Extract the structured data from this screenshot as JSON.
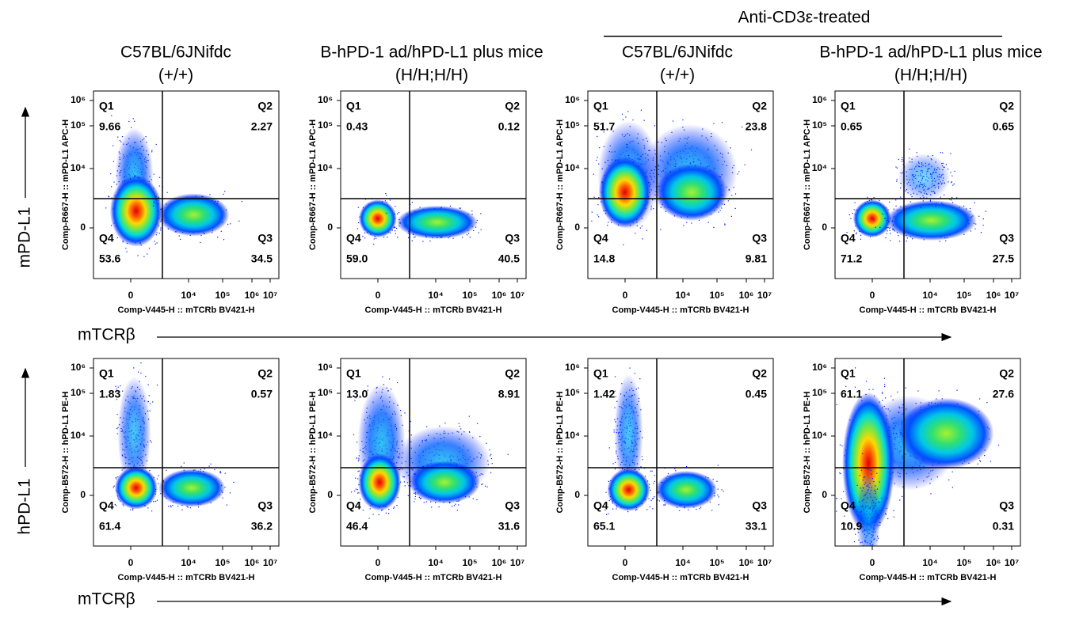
{
  "header": {
    "group_label": "Anti-CD3ε-treated"
  },
  "columns": [
    {
      "line1": "C57BL/6JNifdc",
      "line2": "(+/+)"
    },
    {
      "line1": "B-hPD-1 ad/hPD-L1 plus mice",
      "line2": "(H/H;H/H)"
    },
    {
      "line1": "C57BL/6JNifdc",
      "line2": "(+/+)"
    },
    {
      "line1": "B-hPD-1 ad/hPD-L1 plus mice",
      "line2": "(H/H;H/H)"
    }
  ],
  "x_ticks": [
    "0",
    "10⁴",
    "10⁵",
    "10⁶",
    "10⁷"
  ],
  "y_ticks": [
    "10⁶",
    "10⁵",
    "10⁴",
    "0"
  ],
  "rows": [
    {
      "y_label": "mPD-L1",
      "x_label": "mTCRβ",
      "panels": [
        {
          "x_axis": "Comp-V445-H :: mTCRb BV421-H",
          "y_axis": "Comp-R667-H :: mPD-L1 APC-H",
          "quadrants": [
            {
              "name": "Q1",
              "value": "9.66"
            },
            {
              "name": "Q2",
              "value": "2.27"
            },
            {
              "name": "Q3",
              "value": "34.5"
            },
            {
              "name": "Q4",
              "value": "53.6"
            }
          ]
        },
        {
          "x_axis": "Comp-V445-H :: mTCRb BV421-H",
          "y_axis": "Comp-R667-H :: mPD-L1 APC-H",
          "quadrants": [
            {
              "name": "Q1",
              "value": "0.43"
            },
            {
              "name": "Q2",
              "value": "0.12"
            },
            {
              "name": "Q3",
              "value": "40.5"
            },
            {
              "name": "Q4",
              "value": "59.0"
            }
          ]
        },
        {
          "x_axis": "Comp-V445-H :: mTCRb BV421-H",
          "y_axis": "Comp-R667-H :: mPD-L1 APC-H",
          "quadrants": [
            {
              "name": "Q1",
              "value": "51.7"
            },
            {
              "name": "Q2",
              "value": "23.8"
            },
            {
              "name": "Q3",
              "value": "9.81"
            },
            {
              "name": "Q4",
              "value": "14.8"
            }
          ]
        },
        {
          "x_axis": "Comp-V445-H :: mTCRb BV421-H",
          "y_axis": "Comp-R667-H :: mPD-L1 APC-H",
          "quadrants": [
            {
              "name": "Q1",
              "value": "0.65"
            },
            {
              "name": "Q2",
              "value": "0.65"
            },
            {
              "name": "Q3",
              "value": "27.5"
            },
            {
              "name": "Q4",
              "value": "71.2"
            }
          ]
        }
      ]
    },
    {
      "y_label": "hPD-L1",
      "x_label": "mTCRβ",
      "panels": [
        {
          "x_axis": "Comp-V445-H :: mTCRb BV421-H",
          "y_axis": "Comp-B572-H :: hPD-L1 PE-H",
          "quadrants": [
            {
              "name": "Q1",
              "value": "1.83"
            },
            {
              "name": "Q2",
              "value": "0.57"
            },
            {
              "name": "Q3",
              "value": "36.2"
            },
            {
              "name": "Q4",
              "value": "61.4"
            }
          ]
        },
        {
          "x_axis": "Comp-V445-H :: mTCRb BV421-H",
          "y_axis": "Comp-B572-H :: hPD-L1 PE-H",
          "quadrants": [
            {
              "name": "Q1",
              "value": "13.0"
            },
            {
              "name": "Q2",
              "value": "8.91"
            },
            {
              "name": "Q3",
              "value": "31.6"
            },
            {
              "name": "Q4",
              "value": "46.4"
            }
          ]
        },
        {
          "x_axis": "Comp-V445-H :: mTCRb BV421-H",
          "y_axis": "Comp-B572-H :: hPD-L1 PE-H",
          "quadrants": [
            {
              "name": "Q1",
              "value": "1.42"
            },
            {
              "name": "Q2",
              "value": "0.45"
            },
            {
              "name": "Q3",
              "value": "33.1"
            },
            {
              "name": "Q4",
              "value": "65.1"
            }
          ]
        },
        {
          "x_axis": "Comp-V445-H :: mTCRb BV421-H",
          "y_axis": "Comp-B572-H :: hPD-L1 PE-H",
          "quadrants": [
            {
              "name": "Q1",
              "value": "61.1"
            },
            {
              "name": "Q2",
              "value": "27.6"
            },
            {
              "name": "Q3",
              "value": "0.31"
            },
            {
              "name": "Q4",
              "value": "10.9"
            }
          ]
        }
      ]
    }
  ]
}
